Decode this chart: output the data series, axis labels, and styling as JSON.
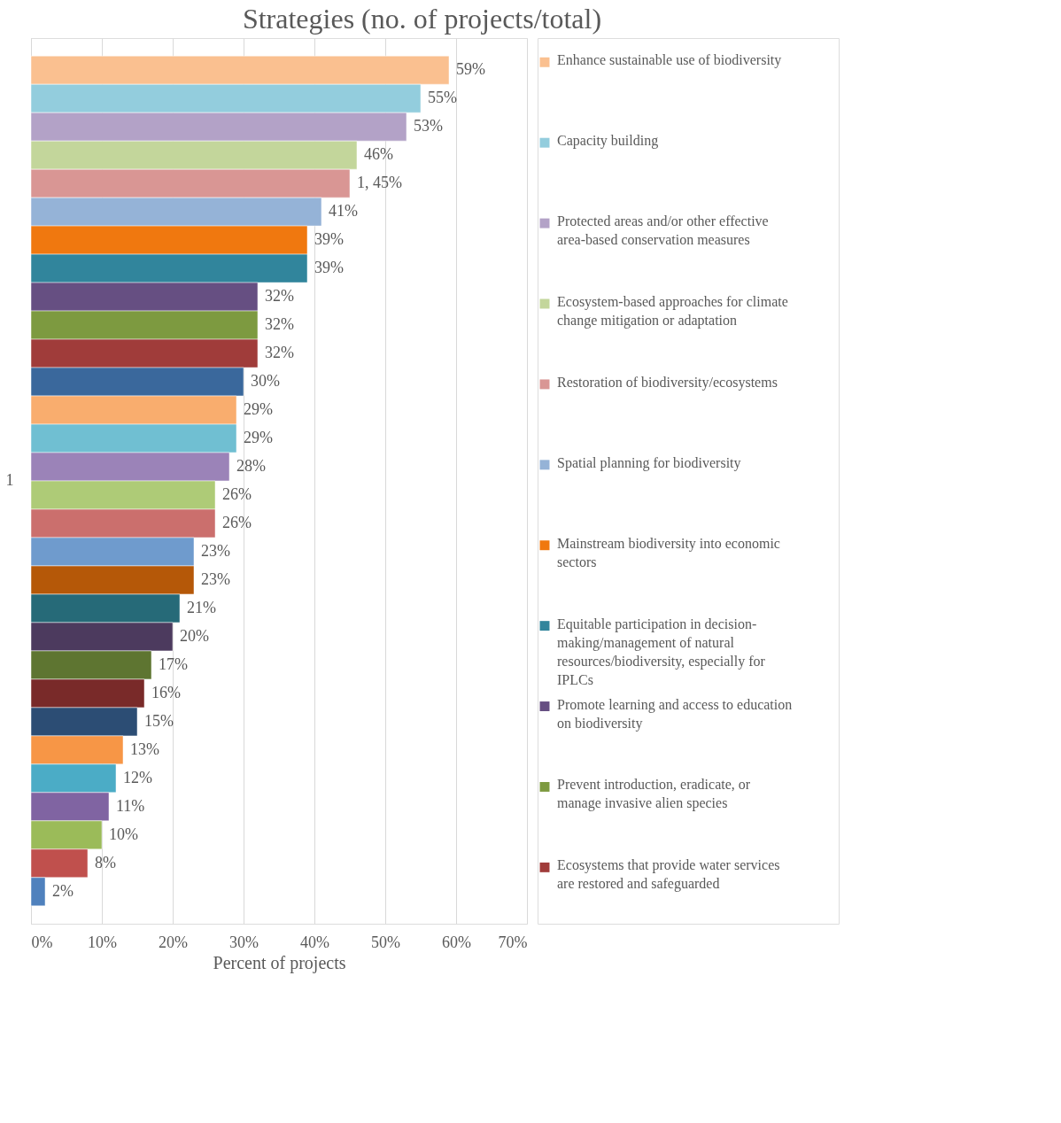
{
  "chart_data": {
    "type": "bar",
    "orientation": "horizontal",
    "title": "Strategies (no. of projects/total)",
    "xlabel": "Percent of projects",
    "categories": [
      "1"
    ],
    "xlim": [
      0,
      70
    ],
    "xticks": [
      {
        "value": 0,
        "label": "0%"
      },
      {
        "value": 10,
        "label": "10%"
      },
      {
        "value": 20,
        "label": "20%"
      },
      {
        "value": 30,
        "label": "30%"
      },
      {
        "value": 40,
        "label": "40%"
      },
      {
        "value": 50,
        "label": "50%"
      },
      {
        "value": 60,
        "label": "60%"
      },
      {
        "value": 70,
        "label": "70%"
      }
    ],
    "grid": "x",
    "legend": "right",
    "series": [
      {
        "name": "Enhance sustainable use of biodiversity",
        "color": "#fac090",
        "values": [
          59
        ],
        "value_labels": [
          "59%"
        ]
      },
      {
        "name": "Capacity building",
        "color": "#93cddd",
        "values": [
          55
        ],
        "value_labels": [
          "55%"
        ]
      },
      {
        "name": "Protected areas and/or other effective area-based conservation measures",
        "color": "#b3a2c7",
        "values": [
          53
        ],
        "value_labels": [
          "53%"
        ]
      },
      {
        "name": "Ecosystem-based approaches for climate change mitigation or adaptation",
        "color": "#c3d69b",
        "values": [
          46
        ],
        "value_labels": [
          "46%"
        ]
      },
      {
        "name": "Restoration of biodiversity/ecosystems",
        "color": "#d99694",
        "values": [
          45
        ],
        "value_labels": [
          "1, 45%"
        ]
      },
      {
        "name": "Spatial planning for biodiversity",
        "color": "#95b3d7",
        "values": [
          41
        ],
        "value_labels": [
          "41%"
        ]
      },
      {
        "name": "Mainstream biodiversity into economic sectors",
        "color": "#f0780f",
        "values": [
          39
        ],
        "value_labels": [
          "39%"
        ]
      },
      {
        "name": "Equitable participation in decision-making/management of natural resources/biodiversity, especially for IPLCs",
        "color": "#31859c",
        "values": [
          39
        ],
        "value_labels": [
          "39%"
        ]
      },
      {
        "name": "Promote learning and access to education on biodiversity",
        "color": "#664f82",
        "values": [
          32
        ],
        "value_labels": [
          "32%"
        ]
      },
      {
        "name": "Prevent introduction, eradicate, or manage invasive alien species",
        "color": "#7d9a40",
        "values": [
          32
        ],
        "value_labels": [
          "32%"
        ]
      },
      {
        "name": "Ecosystems that provide water services are restored and safeguarded",
        "color": "#a03c3a",
        "values": [
          32
        ],
        "value_labels": [
          "32%"
        ]
      },
      {
        "color": "#3a689c",
        "values": [
          30
        ],
        "value_labels": [
          "30%"
        ]
      },
      {
        "color": "#f9ad6e",
        "values": [
          29
        ],
        "value_labels": [
          "29%"
        ]
      },
      {
        "color": "#70bfd2",
        "values": [
          29
        ],
        "value_labels": [
          "29%"
        ]
      },
      {
        "color": "#9b83b8",
        "values": [
          28
        ],
        "value_labels": [
          "28%"
        ]
      },
      {
        "color": "#aecb77",
        "values": [
          26
        ],
        "value_labels": [
          "26%"
        ]
      },
      {
        "color": "#cb6f6d",
        "values": [
          26
        ],
        "value_labels": [
          "26%"
        ]
      },
      {
        "color": "#6f9bcd",
        "values": [
          23
        ],
        "value_labels": [
          "23%"
        ]
      },
      {
        "color": "#b55808",
        "values": [
          23
        ],
        "value_labels": [
          "23%"
        ]
      },
      {
        "color": "#266a78",
        "values": [
          21
        ],
        "value_labels": [
          "21%"
        ]
      },
      {
        "color": "#4c3a5e",
        "values": [
          20
        ],
        "value_labels": [
          "20%"
        ]
      },
      {
        "color": "#5e7531",
        "values": [
          17
        ],
        "value_labels": [
          "17%"
        ]
      },
      {
        "color": "#792a29",
        "values": [
          16
        ],
        "value_labels": [
          "16%"
        ]
      },
      {
        "color": "#2c4d74",
        "values": [
          15
        ],
        "value_labels": [
          "15%"
        ]
      },
      {
        "color": "#f79646",
        "values": [
          13
        ],
        "value_labels": [
          "13%"
        ]
      },
      {
        "color": "#4bacc6",
        "values": [
          12
        ],
        "value_labels": [
          "12%"
        ]
      },
      {
        "color": "#8064a2",
        "values": [
          11
        ],
        "value_labels": [
          "11%"
        ]
      },
      {
        "color": "#9bbb59",
        "values": [
          10
        ],
        "value_labels": [
          "10%"
        ]
      },
      {
        "color": "#c0504d",
        "values": [
          8
        ],
        "value_labels": [
          "8%"
        ]
      },
      {
        "color": "#4f81bd",
        "values": [
          2
        ],
        "value_labels": [
          "2%"
        ]
      }
    ]
  }
}
